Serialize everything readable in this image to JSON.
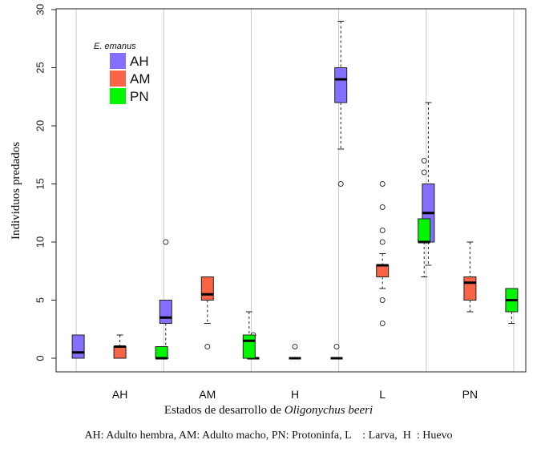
{
  "chart_data": {
    "type": "boxplot",
    "ylabel": "Individuos predados",
    "xlabel": "Estados de desarrollo de",
    "xlabel_italic": "Oligonychus beeri",
    "ylim": [
      0,
      30
    ],
    "yticks": [
      0,
      5,
      10,
      15,
      20,
      25,
      30
    ],
    "categories": [
      "AH",
      "AM",
      "H",
      "L",
      "PN"
    ],
    "legend": {
      "title": "E. emanus",
      "placement": "top-left",
      "entries": [
        "AH",
        "AM",
        "PN"
      ]
    },
    "series": [
      {
        "name": "AH",
        "color": "#8470ff",
        "boxes": [
          {
            "min": 0,
            "q1": 0,
            "median": 0.5,
            "q3": 2,
            "max": 2,
            "outliers": []
          },
          {
            "min": 0,
            "q1": 3,
            "median": 3.5,
            "q3": 5,
            "max": 5,
            "outliers": [
              10
            ]
          },
          {
            "min": 0,
            "q1": 0,
            "median": 0,
            "q3": 0,
            "max": 0,
            "outliers": [
              2
            ]
          },
          {
            "min": 18,
            "q1": 22,
            "median": 24,
            "q3": 25,
            "max": 29,
            "outliers": [
              15
            ]
          },
          {
            "min": 8,
            "q1": 10,
            "median": 12.5,
            "q3": 15,
            "max": 22,
            "outliers": []
          }
        ]
      },
      {
        "name": "AM",
        "color": "#fa6446",
        "boxes": [
          {
            "min": 0,
            "q1": 0,
            "median": 1,
            "q3": 1,
            "max": 2,
            "outliers": []
          },
          {
            "min": 3,
            "q1": 5,
            "median": 5.5,
            "q3": 7,
            "max": 7,
            "outliers": [
              1
            ]
          },
          {
            "min": 0,
            "q1": 0,
            "median": 0,
            "q3": 0,
            "max": 0,
            "outliers": [
              1
            ]
          },
          {
            "min": 6,
            "q1": 7,
            "median": 8,
            "q3": 8,
            "max": 9,
            "outliers": [
              3,
              5,
              10,
              11,
              13,
              15
            ]
          },
          {
            "min": 4,
            "q1": 5,
            "median": 6.5,
            "q3": 7,
            "max": 10,
            "outliers": []
          }
        ]
      },
      {
        "name": "PN",
        "color": "#00f500",
        "boxes": [
          {
            "min": 0,
            "q1": 0,
            "median": 0,
            "q3": 1,
            "max": 1,
            "outliers": []
          },
          {
            "min": 0,
            "q1": 0,
            "median": 1.5,
            "q3": 2,
            "max": 4,
            "outliers": []
          },
          {
            "min": 0,
            "q1": 0,
            "median": 0,
            "q3": 0,
            "max": 0,
            "outliers": [
              1
            ]
          },
          {
            "min": 7,
            "q1": 10,
            "median": 10,
            "q3": 12,
            "max": 12,
            "outliers": [
              16,
              17
            ]
          },
          {
            "min": 3,
            "q1": 4,
            "median": 5,
            "q3": 6,
            "max": 6,
            "outliers": []
          }
        ]
      }
    ]
  },
  "footnote": "AH: Adulto hembra, AM: Adulto macho, PN: Protoninfa, L    : Larva,  H  : Huevo"
}
